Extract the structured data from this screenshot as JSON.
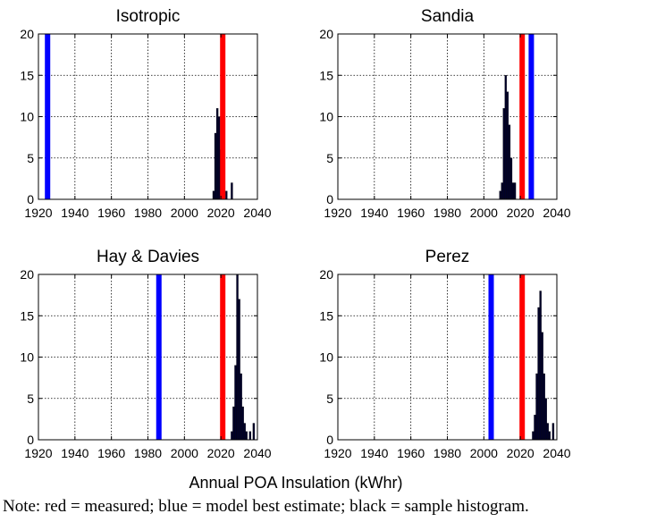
{
  "xlabel": "Annual POA Insulation (kWhr)",
  "note": "Note: red = measured; blue = model best estimate; black = sample histogram.",
  "colors": {
    "measured": "#ff0000",
    "model": "#0000ff",
    "histogram": "#00002a"
  },
  "chart_data": [
    {
      "type": "bar",
      "title": "Isotropic",
      "xlim": [
        1920,
        2040
      ],
      "ylim": [
        0,
        20
      ],
      "xticks": [
        "1920",
        "1940",
        "1960",
        "1980",
        "2000",
        "2020",
        "2040"
      ],
      "yticks": [
        "0",
        "5",
        "10",
        "15",
        "20"
      ],
      "grid": true,
      "measured": 2021,
      "model_best_estimate": 1925,
      "histogram": {
        "x": [
          2016,
          2017,
          2018,
          2019,
          2020,
          2023,
          2026
        ],
        "counts": [
          1,
          8,
          11,
          10,
          6,
          1,
          2
        ]
      }
    },
    {
      "type": "bar",
      "title": "Sandia",
      "xlim": [
        1920,
        2040
      ],
      "ylim": [
        0,
        20
      ],
      "xticks": [
        "1920",
        "1940",
        "1960",
        "1980",
        "2000",
        "2020",
        "2040"
      ],
      "yticks": [
        "0",
        "5",
        "10",
        "15",
        "20"
      ],
      "grid": true,
      "measured": 2021,
      "model_best_estimate": 2026,
      "histogram": {
        "x": [
          2009,
          2010,
          2011,
          2012,
          2013,
          2014,
          2015,
          2016,
          2017
        ],
        "counts": [
          1,
          2,
          11,
          15,
          13,
          9,
          5,
          2,
          2
        ]
      }
    },
    {
      "type": "bar",
      "title": "Hay & Davies",
      "xlim": [
        1920,
        2040
      ],
      "ylim": [
        0,
        20
      ],
      "xticks": [
        "1920",
        "1940",
        "1960",
        "1980",
        "2000",
        "2020",
        "2040"
      ],
      "yticks": [
        "0",
        "5",
        "10",
        "15",
        "20"
      ],
      "grid": true,
      "measured": 2021,
      "model_best_estimate": 1986,
      "histogram": {
        "x": [
          2026,
          2027,
          2028,
          2029,
          2030,
          2031,
          2032,
          2033,
          2034,
          2036,
          2038
        ],
        "counts": [
          1,
          4,
          9,
          20,
          17,
          8,
          4,
          2,
          1,
          1,
          2
        ]
      }
    },
    {
      "type": "bar",
      "title": "Perez",
      "xlim": [
        1920,
        2040
      ],
      "ylim": [
        0,
        20
      ],
      "xticks": [
        "1920",
        "1940",
        "1960",
        "1980",
        "2000",
        "2020",
        "2040"
      ],
      "yticks": [
        "0",
        "5",
        "10",
        "15",
        "20"
      ],
      "grid": true,
      "measured": 2021,
      "model_best_estimate": 2004,
      "histogram": {
        "x": [
          2027,
          2028,
          2029,
          2030,
          2031,
          2032,
          2033,
          2034,
          2035,
          2036,
          2038
        ],
        "counts": [
          1,
          3,
          8,
          16,
          18,
          13,
          8,
          5,
          2,
          1,
          2
        ]
      }
    }
  ]
}
